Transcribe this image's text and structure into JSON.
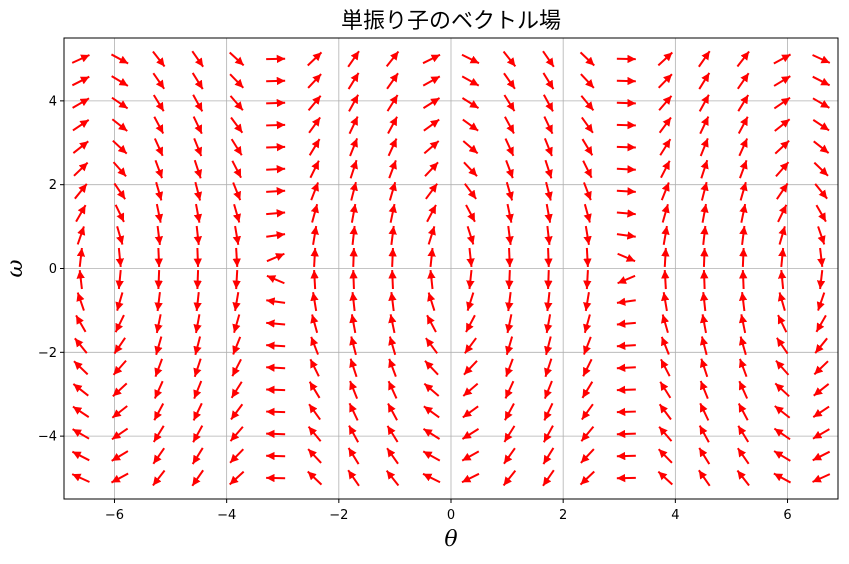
{
  "chart_data": {
    "type": "quiver",
    "title": "単振り子のベクトル場",
    "xlabel": "θ",
    "ylabel": "ω",
    "xlim": [
      -6.9,
      6.9
    ],
    "ylim": [
      -5.5,
      5.5
    ],
    "xticks": [
      -6,
      -4,
      -2,
      0,
      2,
      4,
      6
    ],
    "yticks": [
      -4,
      -2,
      0,
      2,
      4
    ],
    "xtick_labels": [
      "−6",
      "−4",
      "−2",
      "0",
      "2",
      "4",
      "6"
    ],
    "ytick_labels": [
      "−4",
      "−2",
      "0",
      "2",
      "4"
    ],
    "grid": true,
    "arrow_color": "#ff0000",
    "grid_color": "#b0b0b0",
    "field": {
      "dtheta": "omega",
      "domega": "-9.8 * sin(theta)",
      "theta_range": [
        -6.6,
        6.6
      ],
      "theta_count": 20,
      "omega_range": [
        -5.0,
        5.0
      ],
      "omega_count": 20
    }
  }
}
